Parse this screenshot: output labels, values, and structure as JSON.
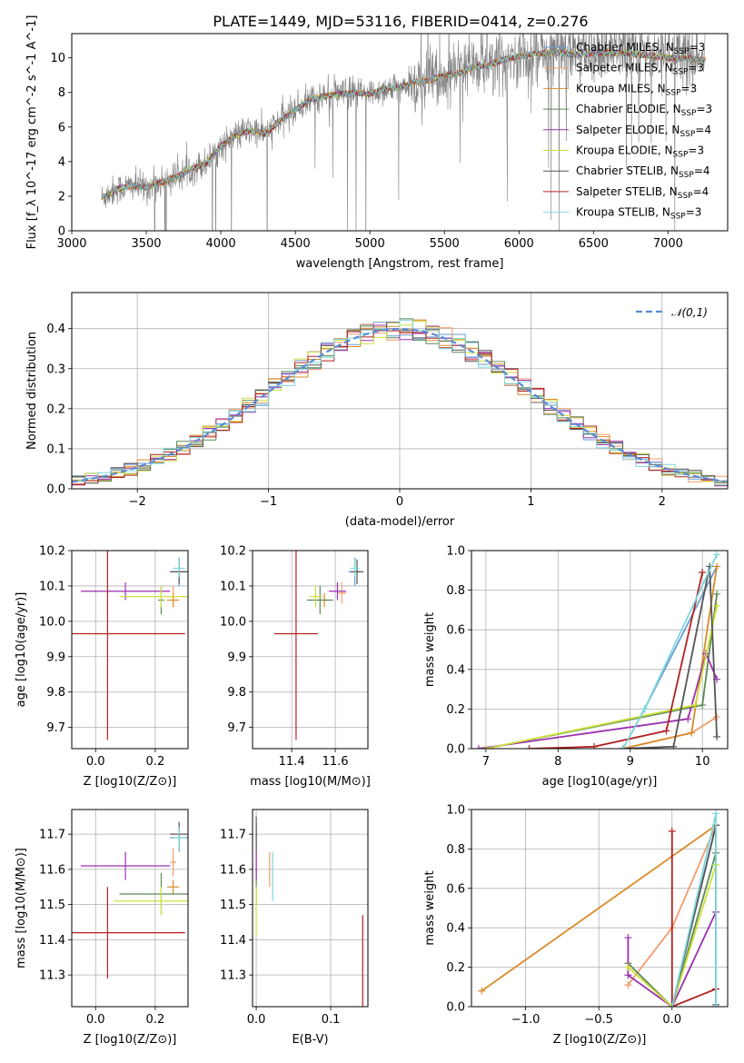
{
  "figure": {
    "title": "PLATE=1449, MJD=53116, FIBERID=0414, z=0.276"
  },
  "models": [
    {
      "name": "Chabrier MILES, N",
      "sub": "SSP",
      "n": "=3",
      "color": "#6b9bd1"
    },
    {
      "name": "Salpeter MILES, N",
      "sub": "SSP",
      "n": "=3",
      "color": "#f39c6b"
    },
    {
      "name": "Kroupa MILES, N",
      "sub": "SSP",
      "n": "=3",
      "color": "#d98c2b"
    },
    {
      "name": "Chabrier ELODIE, N",
      "sub": "SSP",
      "n": "=3",
      "color": "#5b8a56"
    },
    {
      "name": "Salpeter ELODIE, N",
      "sub": "SSP",
      "n": "=4",
      "color": "#9b30b0"
    },
    {
      "name": "Kroupa ELODIE, N",
      "sub": "SSP",
      "n": "=3",
      "color": "#cfe03a"
    },
    {
      "name": "Chabrier STELIB, N",
      "sub": "SSP",
      "n": "=4",
      "color": "#555555"
    },
    {
      "name": "Salpeter STELIB, N",
      "sub": "SSP",
      "n": "=4",
      "color": "#b22222"
    },
    {
      "name": "Kroupa STELIB, N",
      "sub": "SSP",
      "n": "=3",
      "color": "#7fd8dd"
    }
  ],
  "chart_data": [
    {
      "id": "spectrum",
      "type": "line",
      "xlabel": "wavelength [Angstrom, rest frame]",
      "ylabel": "Flux [f_λ 10^-17 erg cm^-2 s^-1 A^-1]",
      "xlim": [
        3000,
        7400
      ],
      "ylim": [
        0,
        11.4
      ],
      "xticks": [
        3000,
        3500,
        4000,
        4500,
        5000,
        5500,
        6000,
        6500,
        7000
      ],
      "yticks": [
        0,
        2,
        4,
        6,
        8,
        10
      ],
      "data_color": "#808080",
      "x_range_data": [
        3200,
        7250
      ],
      "continuum": {
        "x": [
          3200,
          3300,
          3400,
          3500,
          3600,
          3700,
          3800,
          3900,
          4000,
          4100,
          4200,
          4300,
          4400,
          4500,
          4600,
          4700,
          4800,
          4900,
          5000,
          5100,
          5200,
          5300,
          5400,
          5500,
          5600,
          5700,
          5800,
          5900,
          6000,
          6200,
          6400,
          6600,
          6800,
          7000,
          7250
        ],
        "y": [
          1.9,
          2.4,
          2.6,
          2.5,
          2.8,
          3.1,
          3.6,
          3.9,
          4.9,
          5.5,
          5.8,
          5.6,
          6.4,
          7.0,
          7.6,
          7.8,
          7.9,
          8.0,
          7.9,
          8.2,
          8.3,
          8.6,
          8.7,
          9.0,
          9.1,
          9.5,
          9.6,
          9.9,
          10.1,
          10.3,
          10.2,
          10.3,
          10.2,
          10.0,
          9.9
        ]
      },
      "legend_position": "upper right"
    },
    {
      "id": "residuals",
      "type": "histogram",
      "xlabel": "(data-model)/error",
      "ylabel": "Normed distribution",
      "xlim": [
        -2.5,
        2.5
      ],
      "ylim": [
        0,
        0.49
      ],
      "xticks": [
        -2,
        -1,
        0,
        1,
        2
      ],
      "yticks": [
        0.0,
        0.1,
        0.2,
        0.3,
        0.4
      ],
      "reference": {
        "label": "𝒩(0,1)",
        "mean": 0,
        "sigma": 1,
        "color": "#5b8ad6",
        "dash": true
      },
      "bin_width": 0.1,
      "legend_position": "upper right"
    },
    {
      "id": "age-vs-Z",
      "type": "errorbar",
      "xlabel": "Z [log10(Z/Z⊙)]",
      "ylabel": "age  [log10(age/yr)]",
      "xlim": [
        -0.08,
        0.31
      ],
      "ylim": [
        9.64,
        10.2
      ],
      "xticks": [
        0.0,
        0.2
      ],
      "yticks": [
        9.7,
        9.8,
        9.9,
        10.0,
        10.1,
        10.2
      ],
      "points": [
        {
          "model": 0,
          "x": 0.28,
          "y": 10.14,
          "ex": 0.03,
          "ey": 0.04
        },
        {
          "model": 1,
          "x": 0.26,
          "y": 10.07,
          "ex": 0.01,
          "ey": 0.03
        },
        {
          "model": 2,
          "x": 0.26,
          "y": 10.06,
          "ex": 0.02,
          "ey": 0.02
        },
        {
          "model": 3,
          "x": 0.22,
          "y": 10.06,
          "ex": 0.01,
          "ey": 0.04
        },
        {
          "model": 4,
          "x": 0.1,
          "y": 10.085,
          "ex": 0.15,
          "ey": 0.025
        },
        {
          "model": 5,
          "x": 0.22,
          "y": 10.07,
          "ex": 0.14,
          "ey": 0.03
        },
        {
          "model": 6,
          "x": 0.28,
          "y": 10.14,
          "ex": 0.03,
          "ey": 0.035
        },
        {
          "model": 7,
          "x": 0.04,
          "y": 9.965,
          "ex": 0.26,
          "ey": 0.3
        },
        {
          "model": 8,
          "x": 0.28,
          "y": 10.15,
          "ex": 0.02,
          "ey": 0.025
        }
      ]
    },
    {
      "id": "age-vs-mass",
      "type": "errorbar",
      "xlabel": "mass [log10(M/M⊙)]",
      "ylabel": "",
      "xlim": [
        11.22,
        11.75
      ],
      "ylim": [
        9.64,
        10.2
      ],
      "xticks": [
        11.4,
        11.6
      ],
      "yticks": [
        9.7,
        9.8,
        9.9,
        10.0,
        10.1,
        10.2
      ],
      "points": [
        {
          "model": 0,
          "x": 11.69,
          "y": 10.14,
          "ex": 0.03,
          "ey": 0.04
        },
        {
          "model": 1,
          "x": 11.63,
          "y": 10.08,
          "ex": 0.02,
          "ey": 0.03
        },
        {
          "model": 2,
          "x": 11.55,
          "y": 10.06,
          "ex": 0.02,
          "ey": 0.02
        },
        {
          "model": 3,
          "x": 11.53,
          "y": 10.06,
          "ex": 0.06,
          "ey": 0.04
        },
        {
          "model": 4,
          "x": 11.61,
          "y": 10.085,
          "ex": 0.04,
          "ey": 0.025
        },
        {
          "model": 5,
          "x": 11.51,
          "y": 10.07,
          "ex": 0.03,
          "ey": 0.03
        },
        {
          "model": 6,
          "x": 11.7,
          "y": 10.14,
          "ex": 0.03,
          "ey": 0.035
        },
        {
          "model": 7,
          "x": 11.42,
          "y": 9.965,
          "ex": 0.1,
          "ey": 0.3
        },
        {
          "model": 8,
          "x": 11.69,
          "y": 10.15,
          "ex": 0.02,
          "ey": 0.025
        }
      ]
    },
    {
      "id": "weight-vs-age",
      "type": "line",
      "xlabel": "age  [log10(age/yr)]",
      "ylabel": "mass weight",
      "xlim": [
        6.8,
        10.35
      ],
      "ylim": [
        0,
        1.0
      ],
      "xticks": [
        7,
        8,
        9,
        10
      ],
      "yticks": [
        0.0,
        0.2,
        0.4,
        0.6,
        0.8,
        1.0
      ],
      "series": [
        {
          "model": 0,
          "x": [
            8.9,
            9.2,
            10.2
          ],
          "y": [
            0.0,
            0.2,
            0.92
          ]
        },
        {
          "model": 1,
          "x": [
            8.9,
            9.85,
            10.2
          ],
          "y": [
            0.0,
            0.08,
            0.16
          ]
        },
        {
          "model": 2,
          "x": [
            8.9,
            9.85,
            10.2
          ],
          "y": [
            0.0,
            0.08,
            0.92
          ]
        },
        {
          "model": 3,
          "x": [
            7.0,
            10.0,
            10.2
          ],
          "y": [
            0.0,
            0.22,
            0.78
          ]
        },
        {
          "model": 4,
          "x": [
            6.9,
            9.8,
            10.05,
            10.2
          ],
          "y": [
            0.0,
            0.15,
            0.48,
            0.35
          ]
        },
        {
          "model": 5,
          "x": [
            7.0,
            9.9,
            10.2
          ],
          "y": [
            0.0,
            0.22,
            0.72
          ]
        },
        {
          "model": 6,
          "x": [
            8.9,
            9.6,
            10.1,
            10.2
          ],
          "y": [
            0.0,
            0.01,
            0.92,
            0.06
          ]
        },
        {
          "model": 7,
          "x": [
            7.6,
            8.5,
            9.5,
            10.0
          ],
          "y": [
            0.0,
            0.01,
            0.09,
            0.89
          ]
        },
        {
          "model": 8,
          "x": [
            8.9,
            9.2,
            10.2
          ],
          "y": [
            0.0,
            0.2,
            0.98
          ]
        }
      ]
    },
    {
      "id": "mass-vs-Z",
      "type": "errorbar",
      "xlabel": "Z [log10(Z/Z⊙)]",
      "ylabel": "mass [log10(M/M⊙)]",
      "xlim": [
        -0.08,
        0.31
      ],
      "ylim": [
        11.21,
        11.77
      ],
      "xticks": [
        0.0,
        0.2
      ],
      "yticks": [
        11.3,
        11.4,
        11.5,
        11.6,
        11.7
      ],
      "points": [
        {
          "model": 0,
          "x": 0.28,
          "y": 11.69,
          "ex": 0.03,
          "ey": 0.04
        },
        {
          "model": 1,
          "x": 0.26,
          "y": 11.62,
          "ex": 0.01,
          "ey": 0.04
        },
        {
          "model": 2,
          "x": 0.26,
          "y": 11.55,
          "ex": 0.02,
          "ey": 0.02
        },
        {
          "model": 3,
          "x": 0.22,
          "y": 11.53,
          "ex": 0.14,
          "ey": 0.06
        },
        {
          "model": 4,
          "x": 0.1,
          "y": 11.61,
          "ex": 0.15,
          "ey": 0.04
        },
        {
          "model": 5,
          "x": 0.22,
          "y": 11.51,
          "ex": 0.16,
          "ey": 0.04
        },
        {
          "model": 6,
          "x": 0.28,
          "y": 11.7,
          "ex": 0.03,
          "ey": 0.035
        },
        {
          "model": 7,
          "x": 0.04,
          "y": 11.42,
          "ex": 0.26,
          "ey": 0.13
        },
        {
          "model": 8,
          "x": 0.28,
          "y": 11.69,
          "ex": 0.02,
          "ey": 0.03
        }
      ]
    },
    {
      "id": "mass-vs-ebv",
      "type": "errorbar",
      "xlabel": "E(B-V)",
      "ylabel": "",
      "xlim": [
        -0.005,
        0.15
      ],
      "ylim": [
        11.21,
        11.77
      ],
      "xticks": [
        0.0,
        0.1
      ],
      "yticks": [
        11.3,
        11.4,
        11.5,
        11.6,
        11.7
      ],
      "points": [
        {
          "model": 0,
          "x": 0.0,
          "y": 11.69,
          "ex": 0.0,
          "ey": 0.04
        },
        {
          "model": 1,
          "x": 0.018,
          "y": 11.6,
          "ex": 0.0,
          "ey": 0.05
        },
        {
          "model": 2,
          "x": 0.0,
          "y": 11.62,
          "ex": 0.0,
          "ey": 0.03
        },
        {
          "model": 3,
          "x": 0.0,
          "y": 11.55,
          "ex": 0.0,
          "ey": 0.05
        },
        {
          "model": 4,
          "x": 0.0,
          "y": 11.61,
          "ex": 0.0,
          "ey": 0.04
        },
        {
          "model": 5,
          "x": 0.0,
          "y": 11.48,
          "ex": 0.0,
          "ey": 0.07
        },
        {
          "model": 6,
          "x": 0.0,
          "y": 11.7,
          "ex": 0.0,
          "ey": 0.05
        },
        {
          "model": 7,
          "x": 0.143,
          "y": 11.32,
          "ex": 0.0,
          "ey": 0.15
        },
        {
          "model": 8,
          "x": 0.022,
          "y": 11.58,
          "ex": 0.0,
          "ey": 0.07
        }
      ]
    },
    {
      "id": "weight-vs-Z",
      "type": "line",
      "xlabel": "Z [log10(Z/Z⊙)]",
      "ylabel": "mass weight",
      "xlim": [
        -1.37,
        0.38
      ],
      "ylim": [
        0,
        1.0
      ],
      "xticks": [
        -1.0,
        -0.5,
        0.0
      ],
      "yticks": [
        0.0,
        0.2,
        0.4,
        0.6,
        0.8,
        1.0
      ],
      "series": [
        {
          "model": 0,
          "x": [
            0.0,
            0.3,
            0.3
          ],
          "y": [
            0.0,
            0.92,
            0.0
          ]
        },
        {
          "model": 1,
          "x": [
            -0.3,
            0.0,
            0.3
          ],
          "y": [
            0.11,
            0.4,
            0.92
          ]
        },
        {
          "model": 2,
          "x": [
            -1.3,
            0.3
          ],
          "y": [
            0.08,
            0.92
          ]
        },
        {
          "model": 3,
          "x": [
            -0.3,
            0.0,
            0.3
          ],
          "y": [
            0.22,
            0.0,
            0.78
          ]
        },
        {
          "model": 4,
          "x": [
            -0.3,
            -0.3,
            0.0,
            0.3
          ],
          "y": [
            0.35,
            0.16,
            0.0,
            0.48
          ]
        },
        {
          "model": 5,
          "x": [
            -0.3,
            0.0,
            0.3
          ],
          "y": [
            0.2,
            0.0,
            0.72
          ]
        },
        {
          "model": 6,
          "x": [
            0.0,
            0.3,
            0.3
          ],
          "y": [
            0.0,
            0.92,
            0.01
          ]
        },
        {
          "model": 7,
          "x": [
            0.0,
            0.0,
            0.3
          ],
          "y": [
            0.89,
            0.0,
            0.09
          ]
        },
        {
          "model": 8,
          "x": [
            0.0,
            0.3,
            0.3
          ],
          "y": [
            0.0,
            0.98,
            0.0
          ]
        }
      ]
    }
  ]
}
